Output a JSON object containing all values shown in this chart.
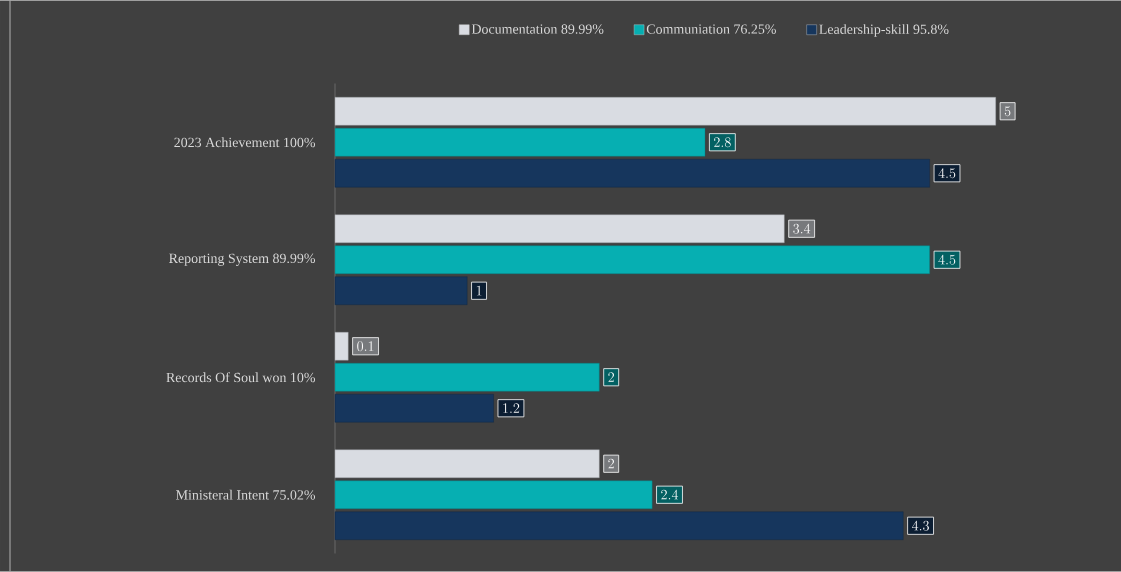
{
  "chart_data": {
    "type": "bar",
    "orientation": "horizontal",
    "data_labels": true,
    "legend": "top",
    "categories": [
      "2023 Achievement 100%",
      "Reporting System 89.99%",
      "Records Of Soul won 10%",
      "Ministeral Intent 75.02%"
    ],
    "series": [
      {
        "name": "Documentation  89.99%",
        "color": "#d9dce2",
        "values": [
          5,
          3.4,
          0.1,
          2
        ]
      },
      {
        "name": "Communiation 76.25%",
        "color": "#06afb2",
        "values": [
          2.8,
          4.5,
          2,
          2.4
        ]
      },
      {
        "name": "Leadership-skill 95.8%",
        "color": "#16365d",
        "values": [
          4.5,
          1,
          1.2,
          4.3
        ]
      }
    ]
  }
}
